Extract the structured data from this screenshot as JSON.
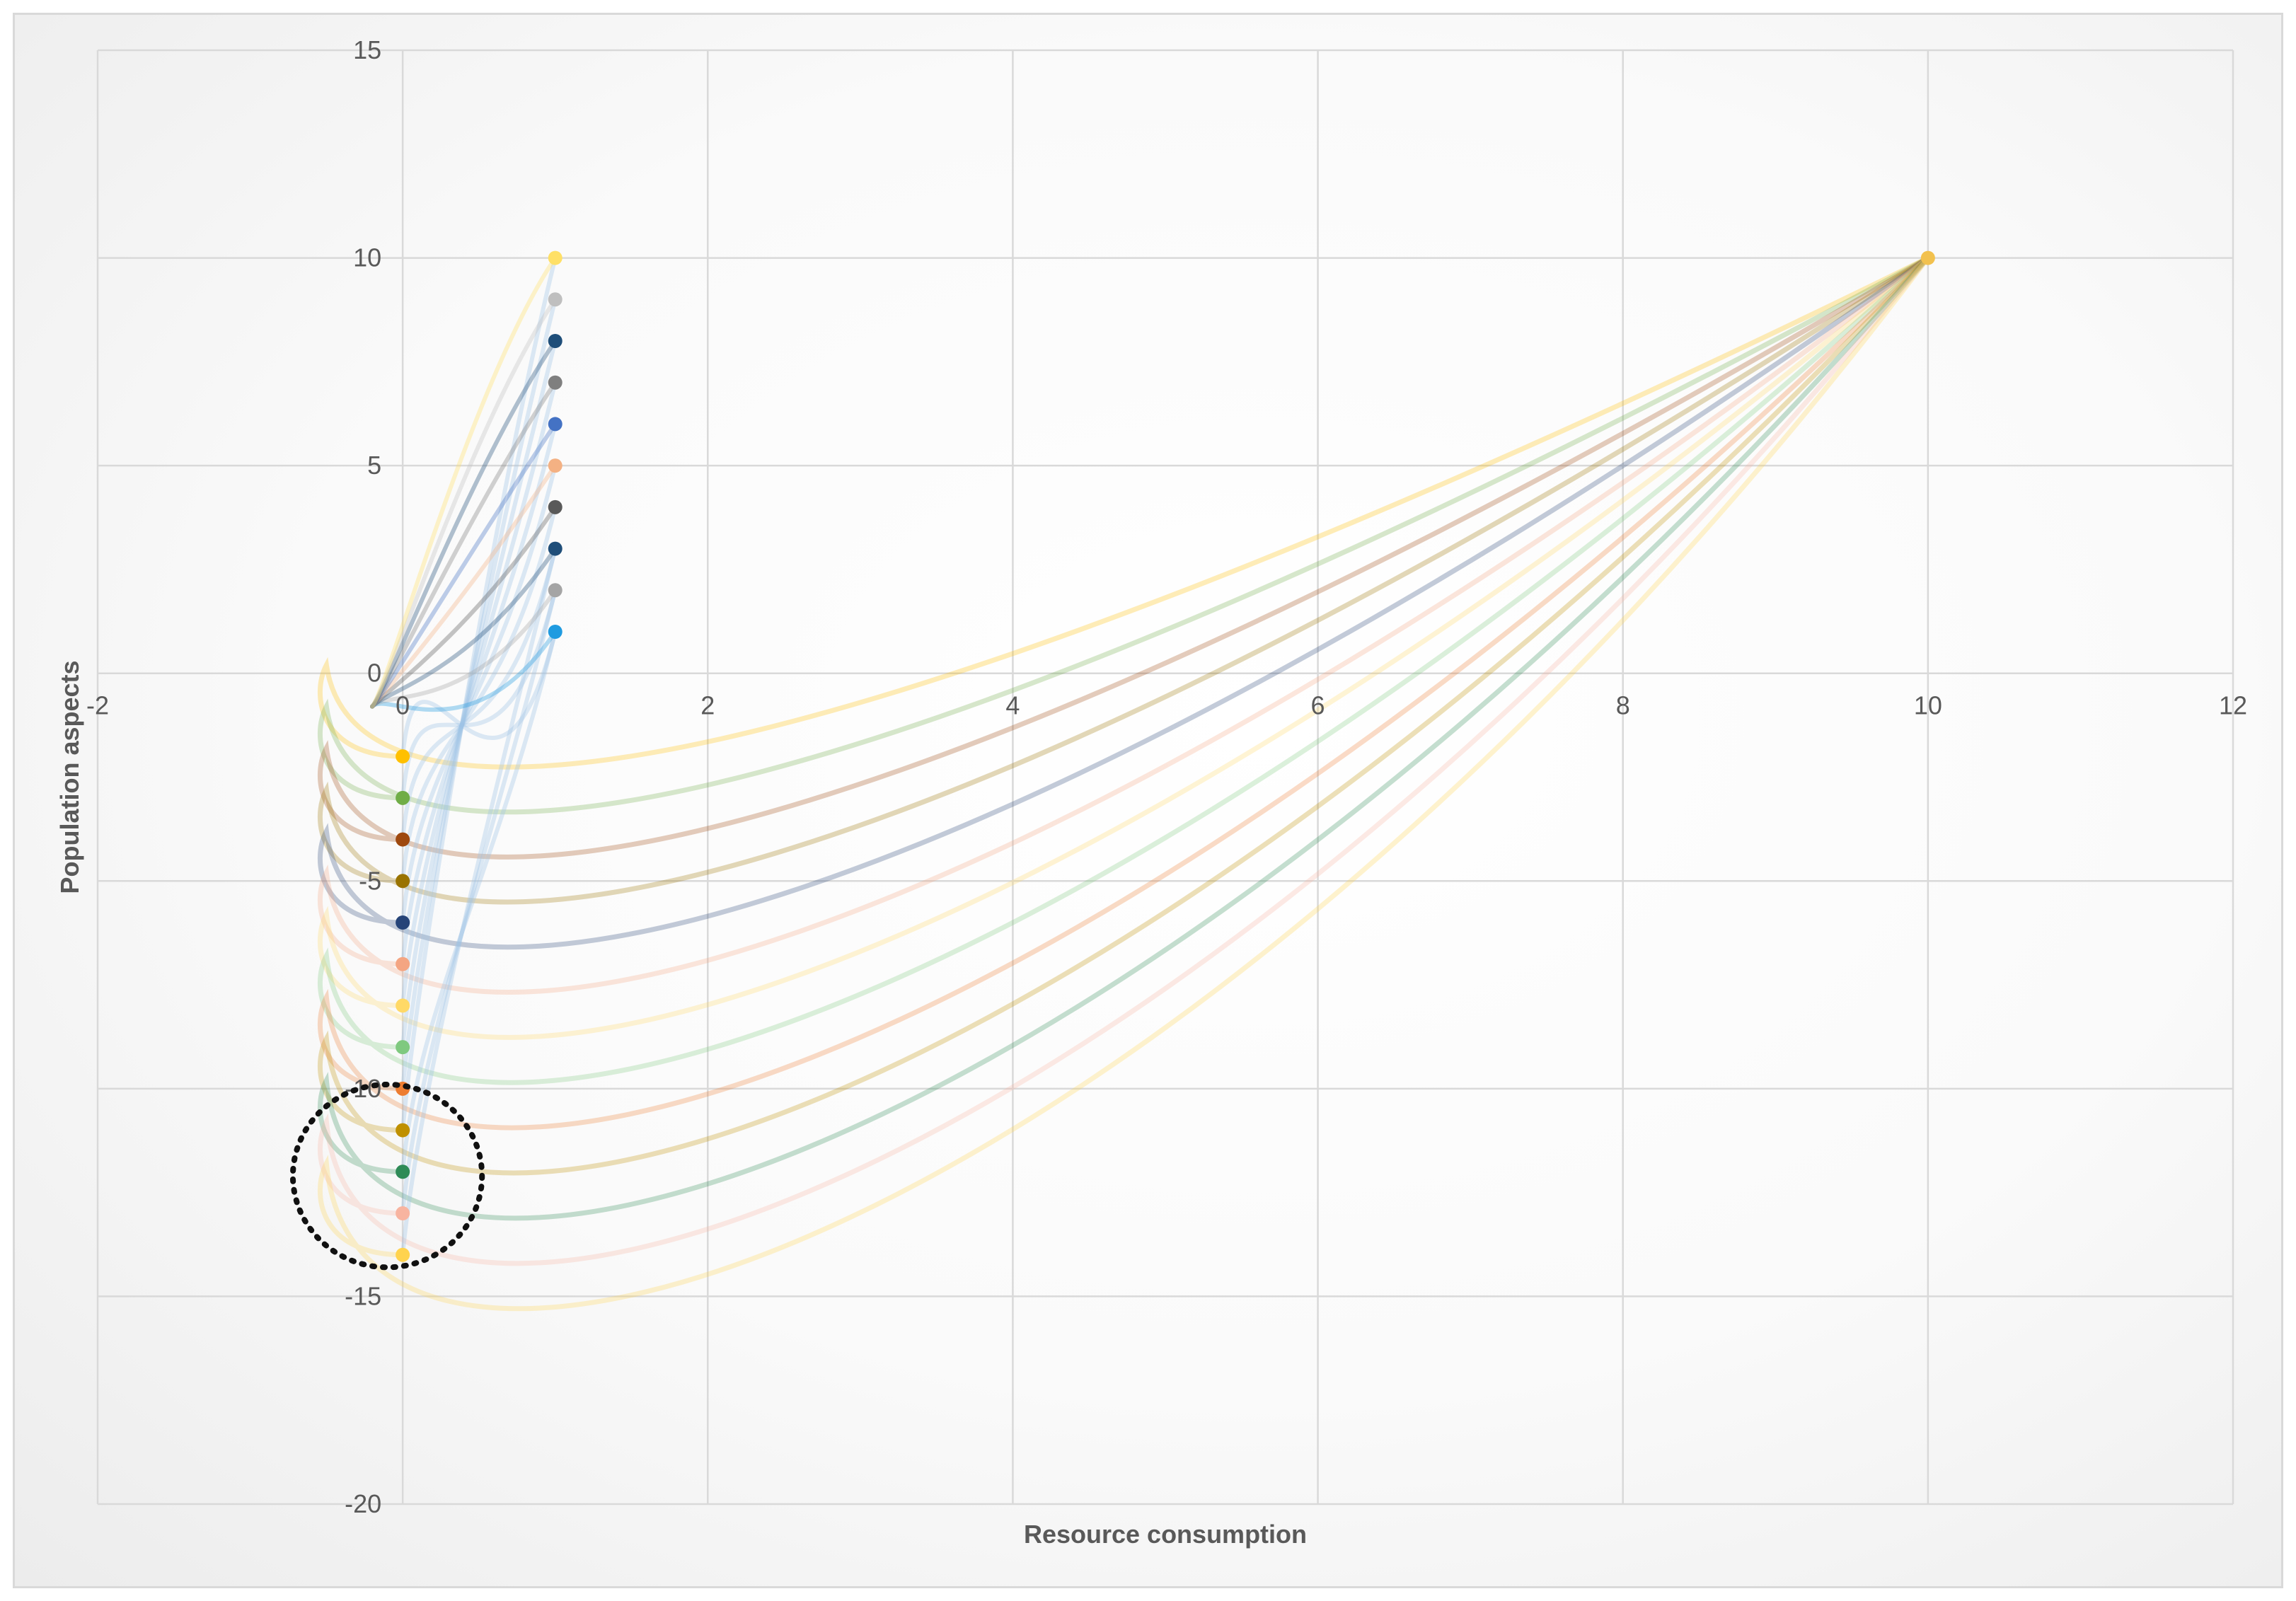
{
  "chart_data": {
    "type": "scatter",
    "title": "",
    "xlabel": "Resource consumption",
    "ylabel": "Population aspects",
    "xlim": [
      -2,
      12
    ],
    "ylim": [
      -20,
      15
    ],
    "x_ticks": [
      "-2",
      "0",
      "2",
      "4",
      "6",
      "8",
      "10",
      "12"
    ],
    "y_ticks": [
      "-20",
      "-15",
      "-10",
      "-5",
      "0",
      "5",
      "10",
      "15"
    ],
    "grid": true,
    "legend": "none",
    "common_point": {
      "x": 10,
      "y": 10,
      "color": "#f2c14e"
    },
    "series_left": [
      {
        "x": 0,
        "y": -2,
        "color": "#ffc000"
      },
      {
        "x": 0,
        "y": -3,
        "color": "#70ad47"
      },
      {
        "x": 0,
        "y": -4,
        "color": "#9e480e"
      },
      {
        "x": 0,
        "y": -5,
        "color": "#997300"
      },
      {
        "x": 0,
        "y": -6,
        "color": "#264478"
      },
      {
        "x": 0,
        "y": -7,
        "color": "#f4a582"
      },
      {
        "x": 0,
        "y": -8,
        "color": "#ffd966"
      },
      {
        "x": 0,
        "y": -9,
        "color": "#7fc97f"
      },
      {
        "x": 0,
        "y": -10,
        "color": "#ed7d31"
      },
      {
        "x": 0,
        "y": -11,
        "color": "#bf9000"
      },
      {
        "x": 0,
        "y": -12,
        "color": "#2e8b57"
      },
      {
        "x": 0,
        "y": -13,
        "color": "#f8b4a0"
      },
      {
        "x": 0,
        "y": -14,
        "color": "#ffd34e"
      }
    ],
    "series_right": [
      {
        "x": 1,
        "y": 1,
        "color": "#1f9be0"
      },
      {
        "x": 1,
        "y": 2,
        "color": "#a5a5a5"
      },
      {
        "x": 1,
        "y": 3,
        "color": "#1f4e79"
      },
      {
        "x": 1,
        "y": 4,
        "color": "#595959"
      },
      {
        "x": 1,
        "y": 5,
        "color": "#f4b183"
      },
      {
        "x": 1,
        "y": 6,
        "color": "#4472c4"
      },
      {
        "x": 1,
        "y": 7,
        "color": "#7f7f7f"
      },
      {
        "x": 1,
        "y": 8,
        "color": "#1f4e79"
      },
      {
        "x": 1,
        "y": 9,
        "color": "#bfbfbf"
      },
      {
        "x": 1,
        "y": 10,
        "color": "#ffe066"
      }
    ],
    "highlight_circle": {
      "x": -0.1,
      "y": -12.1,
      "r_x": 0.62,
      "r_y": 2.2,
      "style": "dotted"
    }
  }
}
